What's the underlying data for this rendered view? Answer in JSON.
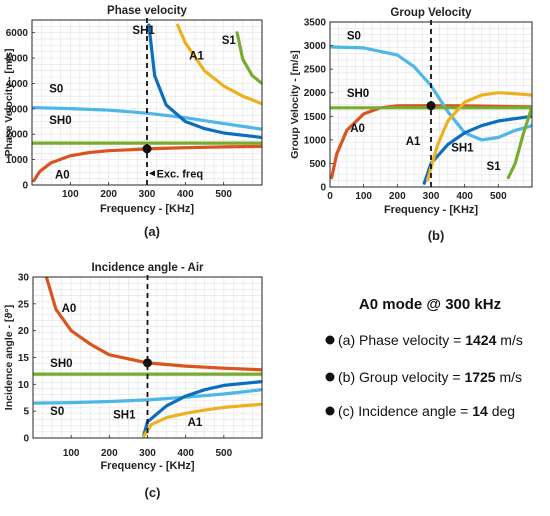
{
  "colors": {
    "A0": "#d9541f",
    "S0": "#4db7e8",
    "SH0": "#77ac30",
    "SH1": "#0b6fc0",
    "A1": "#edb120",
    "S1": "#77ac30",
    "higher": "#a2142f",
    "grid": "#e2e2e2",
    "axis": "#262626"
  },
  "chart_data": [
    {
      "type": "line",
      "panel_label": "(a)",
      "title": "Phase velocity",
      "xlabel": "Frequency - [KHz]",
      "ylabel": "Phase Velocity - [m/s]",
      "xlim": [
        0,
        600
      ],
      "ylim": [
        0,
        6500
      ],
      "xticks": [
        100,
        200,
        300,
        400,
        500
      ],
      "yticks": [
        0,
        1000,
        2000,
        3000,
        4000,
        5000,
        6000
      ],
      "grid": true,
      "vline_x": 300,
      "marker": {
        "x": 300,
        "y": 1424
      },
      "annotation": {
        "text": "Exc. freq",
        "x": 325,
        "y": 300
      },
      "series": [
        {
          "name": "A0",
          "color_key": "A0",
          "x": [
            5,
            20,
            50,
            100,
            150,
            200,
            300,
            400,
            500,
            600
          ],
          "y": [
            170,
            530,
            880,
            1150,
            1280,
            1350,
            1424,
            1470,
            1500,
            1520
          ]
        },
        {
          "name": "S0",
          "color_key": "S0",
          "x": [
            5,
            100,
            200,
            300,
            400,
            500,
            600
          ],
          "y": [
            3050,
            3010,
            2950,
            2830,
            2650,
            2420,
            2200
          ]
        },
        {
          "name": "SH0",
          "color_key": "SH0",
          "x": [
            0,
            600
          ],
          "y": [
            1650,
            1650
          ]
        },
        {
          "name": "SH1",
          "color_key": "SH1",
          "x": [
            305,
            320,
            350,
            400,
            450,
            500,
            600
          ],
          "y": [
            6300,
            4300,
            3150,
            2500,
            2220,
            2050,
            1870
          ]
        },
        {
          "name": "A1",
          "color_key": "A1",
          "x": [
            380,
            400,
            450,
            500,
            550,
            600
          ],
          "y": [
            6300,
            5600,
            4500,
            3900,
            3500,
            3200
          ]
        },
        {
          "name": "S1",
          "color_key": "S1",
          "x": [
            535,
            550,
            575,
            600
          ],
          "y": [
            6000,
            4950,
            4300,
            4000
          ]
        }
      ],
      "labels": [
        {
          "text": "SH1",
          "x": 262,
          "y": 5950
        },
        {
          "text": "A1",
          "x": 410,
          "y": 4950
        },
        {
          "text": "S1",
          "x": 495,
          "y": 5550
        },
        {
          "text": "S0",
          "x": 45,
          "y": 3650
        },
        {
          "text": "SH0",
          "x": 45,
          "y": 2400
        },
        {
          "text": "A0",
          "x": 60,
          "y": 250
        }
      ]
    },
    {
      "type": "line",
      "panel_label": "(b)",
      "title": "Group Velocity",
      "xlabel": "Frequency - [KHz]",
      "ylabel": "Group Velocity - [m/s]",
      "xlim": [
        0,
        600
      ],
      "ylim": [
        0,
        3500
      ],
      "xticks": [
        0,
        100,
        200,
        300,
        400,
        500
      ],
      "yticks": [
        0,
        500,
        1000,
        1500,
        2000,
        2500,
        3000,
        3500
      ],
      "grid": true,
      "vline_x": 300,
      "marker": {
        "x": 300,
        "y": 1725
      },
      "series": [
        {
          "name": "A0",
          "color_key": "A0",
          "x": [
            5,
            20,
            50,
            100,
            150,
            200,
            300,
            400,
            500,
            600
          ],
          "y": [
            200,
            700,
            1200,
            1550,
            1680,
            1720,
            1725,
            1720,
            1710,
            1700
          ]
        },
        {
          "name": "S0",
          "color_key": "S0",
          "x": [
            5,
            100,
            200,
            250,
            300,
            350,
            400,
            450,
            500,
            550,
            600
          ],
          "y": [
            2970,
            2950,
            2800,
            2550,
            2150,
            1600,
            1150,
            1000,
            1050,
            1200,
            1300
          ]
        },
        {
          "name": "SH0",
          "color_key": "SH0",
          "x": [
            0,
            600
          ],
          "y": [
            1680,
            1680
          ]
        },
        {
          "name": "SH1",
          "color_key": "SH1",
          "x": [
            280,
            300,
            350,
            400,
            450,
            500,
            600
          ],
          "y": [
            80,
            500,
            900,
            1150,
            1300,
            1400,
            1500
          ]
        },
        {
          "name": "A1",
          "color_key": "A1",
          "x": [
            290,
            320,
            350,
            400,
            450,
            500,
            550,
            600
          ],
          "y": [
            150,
            900,
            1400,
            1800,
            1950,
            2000,
            1980,
            1950
          ]
        },
        {
          "name": "S1",
          "color_key": "S1",
          "x": [
            530,
            550,
            575,
            600
          ],
          "y": [
            200,
            500,
            1150,
            1700
          ]
        }
      ],
      "labels": [
        {
          "text": "S0",
          "x": 50,
          "y": 3130
        },
        {
          "text": "SH0",
          "x": 50,
          "y": 1910
        },
        {
          "text": "A0",
          "x": 60,
          "y": 1170
        },
        {
          "text": "A1",
          "x": 225,
          "y": 890
        },
        {
          "text": "SH1",
          "x": 360,
          "y": 750
        },
        {
          "text": "S1",
          "x": 465,
          "y": 360
        }
      ]
    },
    {
      "type": "line",
      "panel_label": "(c)",
      "title": "Incidence angle - Air",
      "xlabel": "Frequency - [KHz]",
      "ylabel": "Incidence angle - [ϑ°]",
      "xlim": [
        0,
        600
      ],
      "ylim": [
        0,
        30
      ],
      "xticks": [
        100,
        200,
        300,
        400,
        500
      ],
      "yticks": [
        0,
        5,
        10,
        15,
        20,
        25,
        30
      ],
      "grid": true,
      "vline_x": 300,
      "marker": {
        "x": 300,
        "y": 14
      },
      "series": [
        {
          "name": "A0",
          "color_key": "A0",
          "x": [
            35,
            60,
            100,
            150,
            200,
            300,
            400,
            500,
            600
          ],
          "y": [
            30,
            24,
            20,
            17.5,
            15.5,
            14,
            13.4,
            13,
            12.7
          ]
        },
        {
          "name": "SH0",
          "color_key": "SH0",
          "x": [
            0,
            600
          ],
          "y": [
            11.9,
            11.9
          ]
        },
        {
          "name": "S0",
          "color_key": "S0",
          "x": [
            5,
            100,
            200,
            300,
            400,
            500,
            600
          ],
          "y": [
            6.5,
            6.6,
            6.8,
            7.1,
            7.6,
            8.2,
            9
          ]
        },
        {
          "name": "SH1",
          "color_key": "SH1",
          "x": [
            290,
            300,
            350,
            400,
            450,
            500,
            600
          ],
          "y": [
            0.5,
            3,
            6,
            7.8,
            9,
            9.8,
            10.5
          ]
        },
        {
          "name": "A1",
          "color_key": "A1",
          "x": [
            290,
            310,
            350,
            400,
            450,
            500,
            600
          ],
          "y": [
            0.3,
            2.5,
            3.8,
            4.6,
            5.2,
            5.7,
            6.3
          ]
        }
      ],
      "labels": [
        {
          "text": "A0",
          "x": 75,
          "y": 23.5
        },
        {
          "text": "SH0",
          "x": 45,
          "y": 13.2
        },
        {
          "text": "S0",
          "x": 45,
          "y": 4.3
        },
        {
          "text": "SH1",
          "x": 210,
          "y": 3.6
        },
        {
          "text": "A1",
          "x": 405,
          "y": 2.2
        }
      ]
    }
  ],
  "summary": {
    "title": "A0 mode @ 300 kHz",
    "rows": [
      {
        "prefix": "(a)  Phase velocity = ",
        "value": "1424",
        "unit": " m/s"
      },
      {
        "prefix": "(b)  Group velocity = ",
        "value": "1725",
        "unit": " m/s"
      },
      {
        "prefix": "(c)  Incidence angle = ",
        "value": "14",
        "unit": " deg"
      }
    ]
  }
}
